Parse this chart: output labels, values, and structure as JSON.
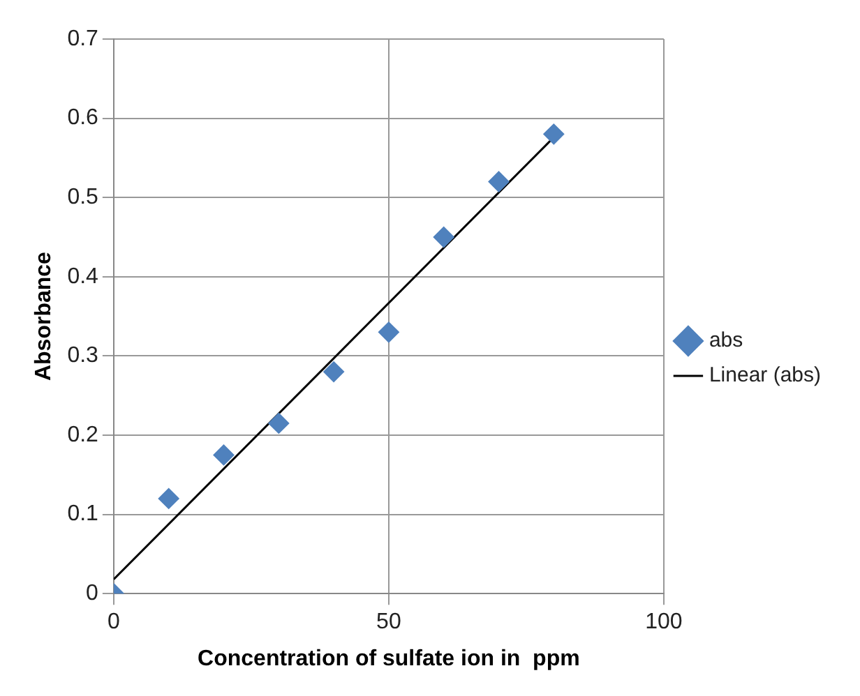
{
  "chart_data": {
    "type": "scatter",
    "xlabel": "Concentration of sulfate ion in  ppm",
    "ylabel": "Absorbance",
    "x": [
      0,
      10,
      20,
      30,
      40,
      50,
      60,
      70,
      80
    ],
    "series": [
      {
        "name": "abs",
        "color": "#4f81bd",
        "values": [
          0,
          0.12,
          0.175,
          0.215,
          0.28,
          0.33,
          0.45,
          0.52,
          0.58
        ],
        "marker": "diamond"
      },
      {
        "name": "Linear (abs)",
        "type": "line",
        "color": "#000000",
        "x": [
          0,
          80
        ],
        "values": [
          0.018,
          0.576
        ],
        "marker": "none"
      }
    ],
    "xlim": [
      0,
      100
    ],
    "xticks": [
      0,
      50,
      100
    ],
    "ylim": [
      0,
      0.7
    ],
    "yticks": [
      0,
      0.1,
      0.2,
      0.3,
      0.4,
      0.5,
      0.6,
      0.7
    ],
    "grid": true,
    "legend": "right"
  }
}
